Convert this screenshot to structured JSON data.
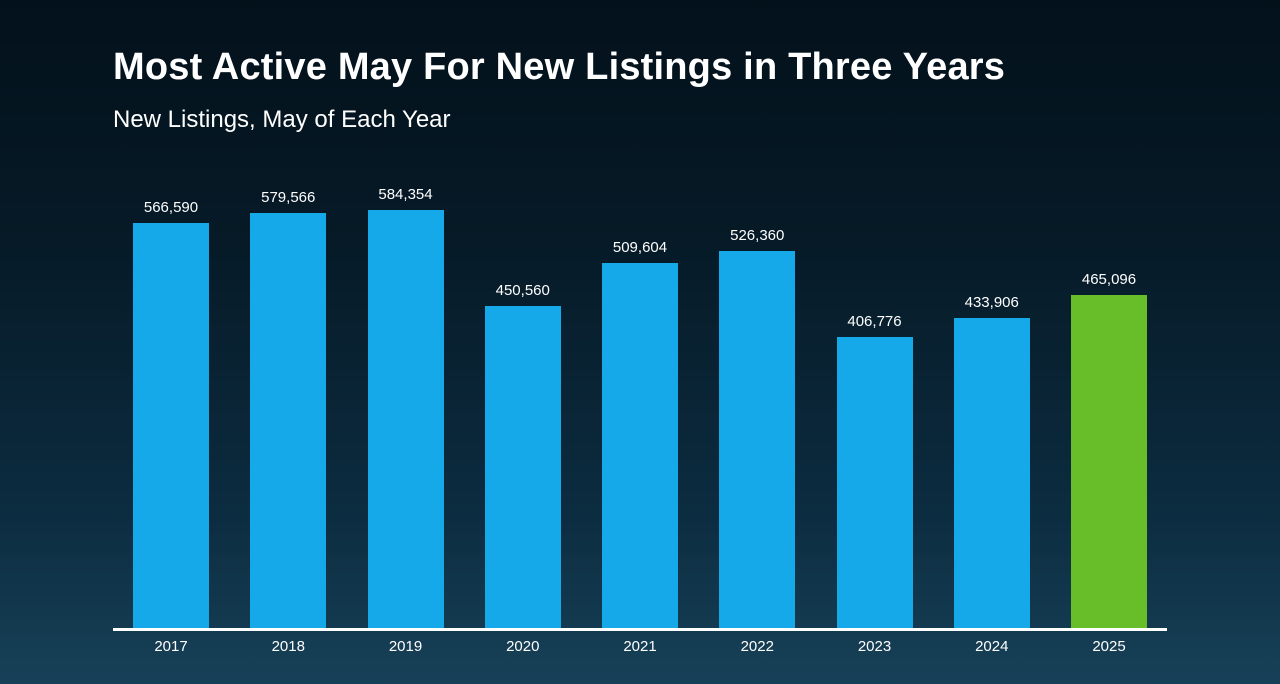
{
  "slide": {
    "title": "Most Active May For New Listings in Three Years",
    "subtitle": "New Listings, May of Each Year"
  },
  "chart_data": {
    "type": "bar",
    "title": "Most Active May For New Listings in Three Years",
    "subtitle": "New Listings, May of Each Year",
    "categories": [
      "2017",
      "2018",
      "2019",
      "2020",
      "2021",
      "2022",
      "2023",
      "2024",
      "2025"
    ],
    "values": [
      566590,
      579566,
      584354,
      450560,
      509604,
      526360,
      406776,
      433906,
      465096
    ],
    "value_labels": [
      "566,590",
      "579,566",
      "584,354",
      "450,560",
      "509,604",
      "526,360",
      "406,776",
      "433,906",
      "465,096"
    ],
    "xlabel": "",
    "ylabel": "",
    "ylim": [
      0,
      600000
    ],
    "grid": false,
    "legend": "none",
    "bar_color": "#16a9e9",
    "highlight_color": "#68be28",
    "highlight_index": 8,
    "axis_line_color": "#ffffff",
    "label_color": "#ffffff",
    "background_top": "#03111b",
    "background_bottom": "#174158"
  }
}
